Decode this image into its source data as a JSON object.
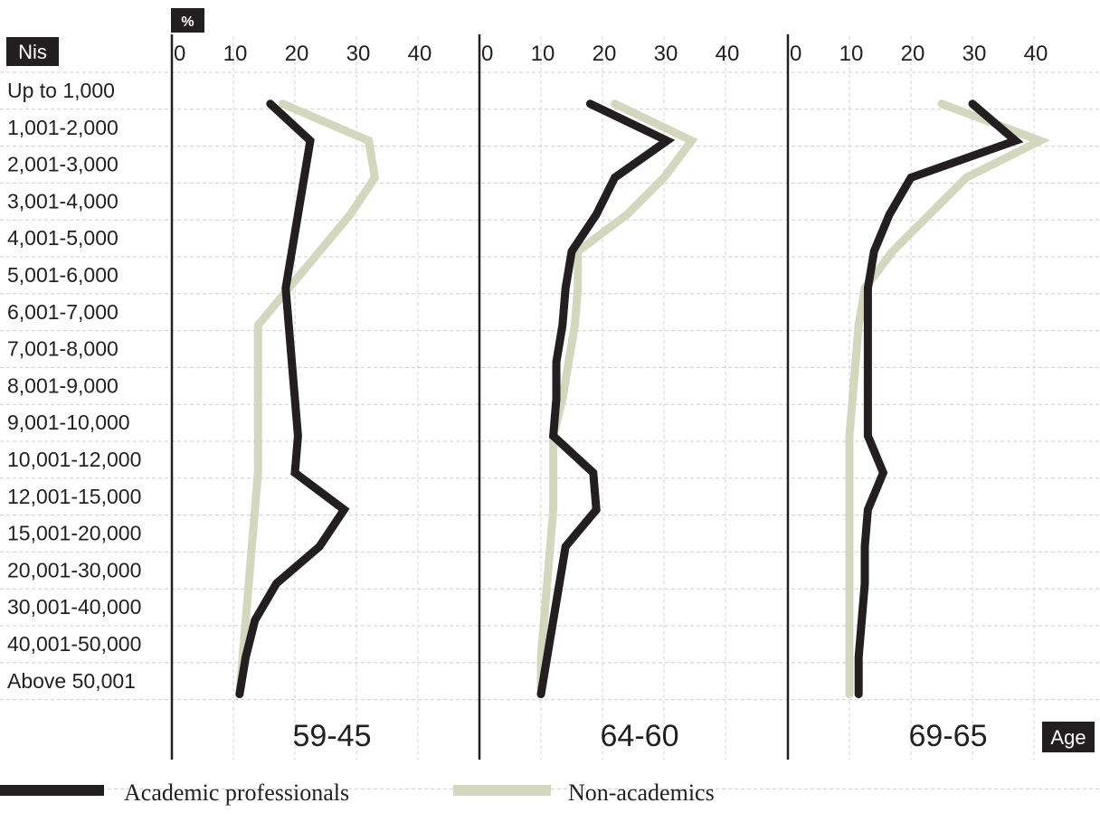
{
  "chart_data": {
    "type": "line",
    "orientation": "vertical-profile",
    "unit_label": "%",
    "category_axis_label": "Nis",
    "panel_axis_label": "Age",
    "categories": [
      "Up to 1,000",
      "1,001-2,000",
      "2,001-3,000",
      "3,001-4,000",
      "4,001-5,000",
      "5,001-6,000",
      "6,001-7,000",
      "7,001-8,000",
      "8,001-9,000",
      "9,001-10,000",
      "10,001-12,000",
      "12,001-15,000",
      "15,001-20,000",
      "20,001-30,000",
      "30,001-40,000",
      "40,001-50,000",
      "Above 50,001"
    ],
    "ticks": [
      0,
      10,
      20,
      30,
      40
    ],
    "xlim": [
      0,
      45
    ],
    "grid": true,
    "legend_position": "bottom",
    "colors": {
      "academic": "#231f20",
      "nonacademic": "#d3d7bd"
    },
    "panels": [
      {
        "label": "59-45",
        "series": [
          {
            "name": "Academic professionals",
            "values": [
              16,
              22.5,
              21.5,
              20.5,
              19.5,
              18.5,
              19,
              19.5,
              20,
              20.5,
              20,
              28,
              24,
              17,
              13.5,
              12,
              11
            ]
          },
          {
            "name": "Non-academics",
            "values": [
              18,
              32,
              33,
              29,
              24,
              19,
              14,
              14,
              14,
              14,
              14,
              13.5,
              13,
              12.5,
              12,
              11.5,
              11
            ]
          }
        ]
      },
      {
        "label": "64-60",
        "series": [
          {
            "name": "Academic professionals",
            "values": [
              18,
              30.5,
              22,
              19,
              15,
              14,
              13.5,
              12.5,
              12.5,
              12,
              18.5,
              19,
              14,
              13,
              12,
              11,
              10
            ]
          },
          {
            "name": "Non-academics",
            "values": [
              22,
              34.5,
              30,
              24,
              16,
              16,
              15.5,
              14.5,
              13.5,
              12,
              12,
              12,
              11.5,
              11,
              10.5,
              10,
              10
            ]
          }
        ]
      },
      {
        "label": "69-65",
        "series": [
          {
            "name": "Academic professionals",
            "values": [
              30,
              37,
              20,
              16.5,
              14,
              13,
              13,
              13,
              13,
              13,
              15.5,
              13,
              12.5,
              12.5,
              12,
              11.5,
              11.5
            ]
          },
          {
            "name": "Non-academics",
            "values": [
              25,
              41,
              29,
              23,
              17,
              12.5,
              11.5,
              11,
              10.5,
              10,
              10,
              10,
              10,
              10,
              10,
              10,
              10
            ]
          }
        ]
      }
    ]
  },
  "legend": {
    "items": [
      {
        "label": "Academic professionals",
        "color": "#231f20"
      },
      {
        "label": "Non-academics",
        "color": "#d3d7bd"
      }
    ]
  }
}
